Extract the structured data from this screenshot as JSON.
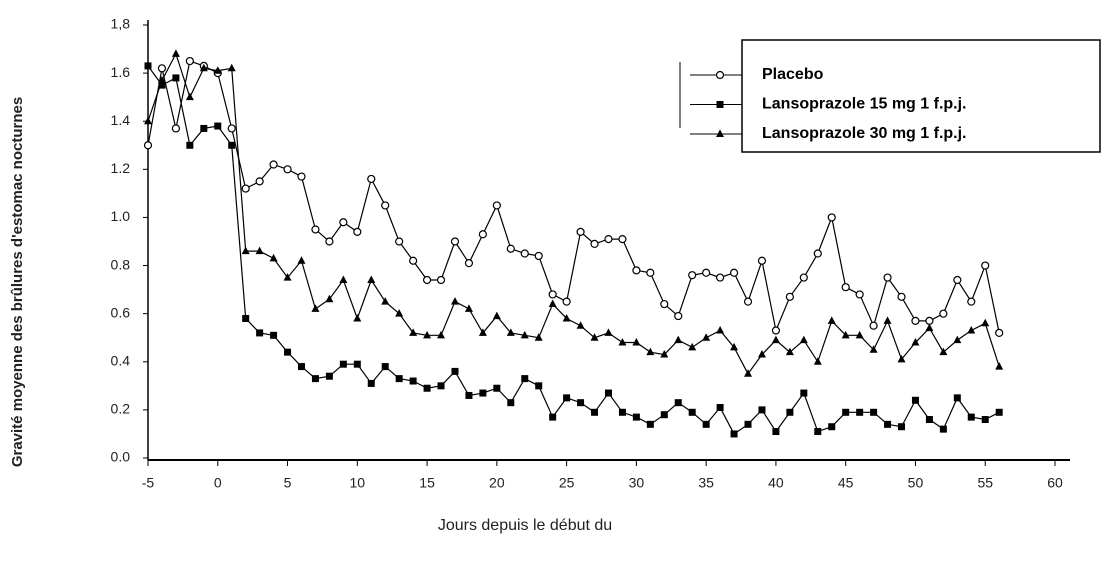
{
  "chart_data": {
    "type": "line",
    "xlabel": "Jours depuis le début du",
    "ylabel": "Gravité moyenne des brûlures d'estomac nocturnes",
    "x": [
      -5,
      -4,
      -3,
      -2,
      -1,
      0,
      1,
      2,
      3,
      4,
      5,
      6,
      7,
      8,
      9,
      10,
      11,
      12,
      13,
      14,
      15,
      16,
      17,
      18,
      19,
      20,
      21,
      22,
      23,
      24,
      25,
      26,
      27,
      28,
      29,
      30,
      31,
      32,
      33,
      34,
      35,
      36,
      37,
      38,
      39,
      40,
      41,
      42,
      43,
      44,
      45,
      46,
      47,
      48,
      49,
      50,
      51,
      52,
      53,
      54,
      55,
      56
    ],
    "series": [
      {
        "name": "Placebo",
        "color": "#000000",
        "marker": "circle-open",
        "values": [
          1.3,
          1.62,
          1.37,
          1.65,
          1.63,
          1.6,
          1.37,
          1.12,
          1.15,
          1.22,
          1.2,
          1.17,
          0.95,
          0.9,
          0.98,
          0.94,
          1.16,
          1.05,
          0.9,
          0.82,
          0.74,
          0.74,
          0.9,
          0.81,
          0.93,
          1.05,
          0.87,
          0.85,
          0.84,
          0.68,
          0.65,
          0.94,
          0.89,
          0.91,
          0.91,
          0.78,
          0.77,
          0.64,
          0.59,
          0.76,
          0.77,
          0.75,
          0.77,
          0.65,
          0.82,
          0.53,
          0.67,
          0.75,
          0.85,
          1.0,
          0.71,
          0.68,
          0.55,
          0.75,
          0.67,
          0.57,
          0.57,
          0.6,
          0.74,
          0.65,
          0.8,
          0.52
        ]
      },
      {
        "name": "Lansoprazole 15 mg 1 f.p.j.",
        "color": "#000000",
        "marker": "square",
        "values": [
          1.63,
          1.55,
          1.58,
          1.3,
          1.37,
          1.38,
          1.3,
          0.58,
          0.52,
          0.51,
          0.44,
          0.38,
          0.33,
          0.34,
          0.39,
          0.39,
          0.31,
          0.38,
          0.33,
          0.32,
          0.29,
          0.3,
          0.36,
          0.26,
          0.27,
          0.29,
          0.23,
          0.33,
          0.3,
          0.17,
          0.25,
          0.23,
          0.19,
          0.27,
          0.19,
          0.17,
          0.14,
          0.18,
          0.23,
          0.19,
          0.14,
          0.21,
          0.1,
          0.14,
          0.2,
          0.11,
          0.19,
          0.27,
          0.11,
          0.13,
          0.19,
          0.19,
          0.19,
          0.14,
          0.13,
          0.24,
          0.16,
          0.12,
          0.25,
          0.17,
          0.16,
          0.19
        ]
      },
      {
        "name": "Lansoprazole 30 mg 1 f.p.j.",
        "color": "#000000",
        "marker": "triangle",
        "values": [
          1.4,
          1.57,
          1.68,
          1.5,
          1.62,
          1.61,
          1.62,
          0.86,
          0.86,
          0.83,
          0.75,
          0.82,
          0.62,
          0.66,
          0.74,
          0.58,
          0.74,
          0.65,
          0.6,
          0.52,
          0.51,
          0.51,
          0.65,
          0.62,
          0.52,
          0.59,
          0.52,
          0.51,
          0.5,
          0.64,
          0.58,
          0.55,
          0.5,
          0.52,
          0.48,
          0.48,
          0.44,
          0.43,
          0.49,
          0.46,
          0.5,
          0.53,
          0.46,
          0.35,
          0.43,
          0.49,
          0.44,
          0.49,
          0.4,
          0.57,
          0.51,
          0.51,
          0.45,
          0.57,
          0.41,
          0.48,
          0.54,
          0.44,
          0.49,
          0.53,
          0.56,
          0.38
        ]
      }
    ],
    "xlim": [
      -5,
      60
    ],
    "xticks": [
      -5,
      0,
      5,
      10,
      15,
      20,
      25,
      30,
      35,
      40,
      45,
      50,
      55,
      60
    ],
    "ylim": [
      0,
      1.8
    ],
    "yticks": [
      {
        "value": 0,
        "label": "0.0"
      },
      {
        "value": 0.2,
        "label": "0.2"
      },
      {
        "value": 0.4,
        "label": "0.4"
      },
      {
        "value": 0.6,
        "label": "0.6"
      },
      {
        "value": 0.8,
        "label": "0.8"
      },
      {
        "value": 1.0,
        "label": "1.0"
      },
      {
        "value": 1.2,
        "label": "1.2"
      },
      {
        "value": 1.4,
        "label": "1.4"
      },
      {
        "value": 1.6,
        "label": "1.6"
      },
      {
        "value": 1.8,
        "label": "1,8"
      }
    ],
    "grid": false,
    "legend": "upper right"
  }
}
